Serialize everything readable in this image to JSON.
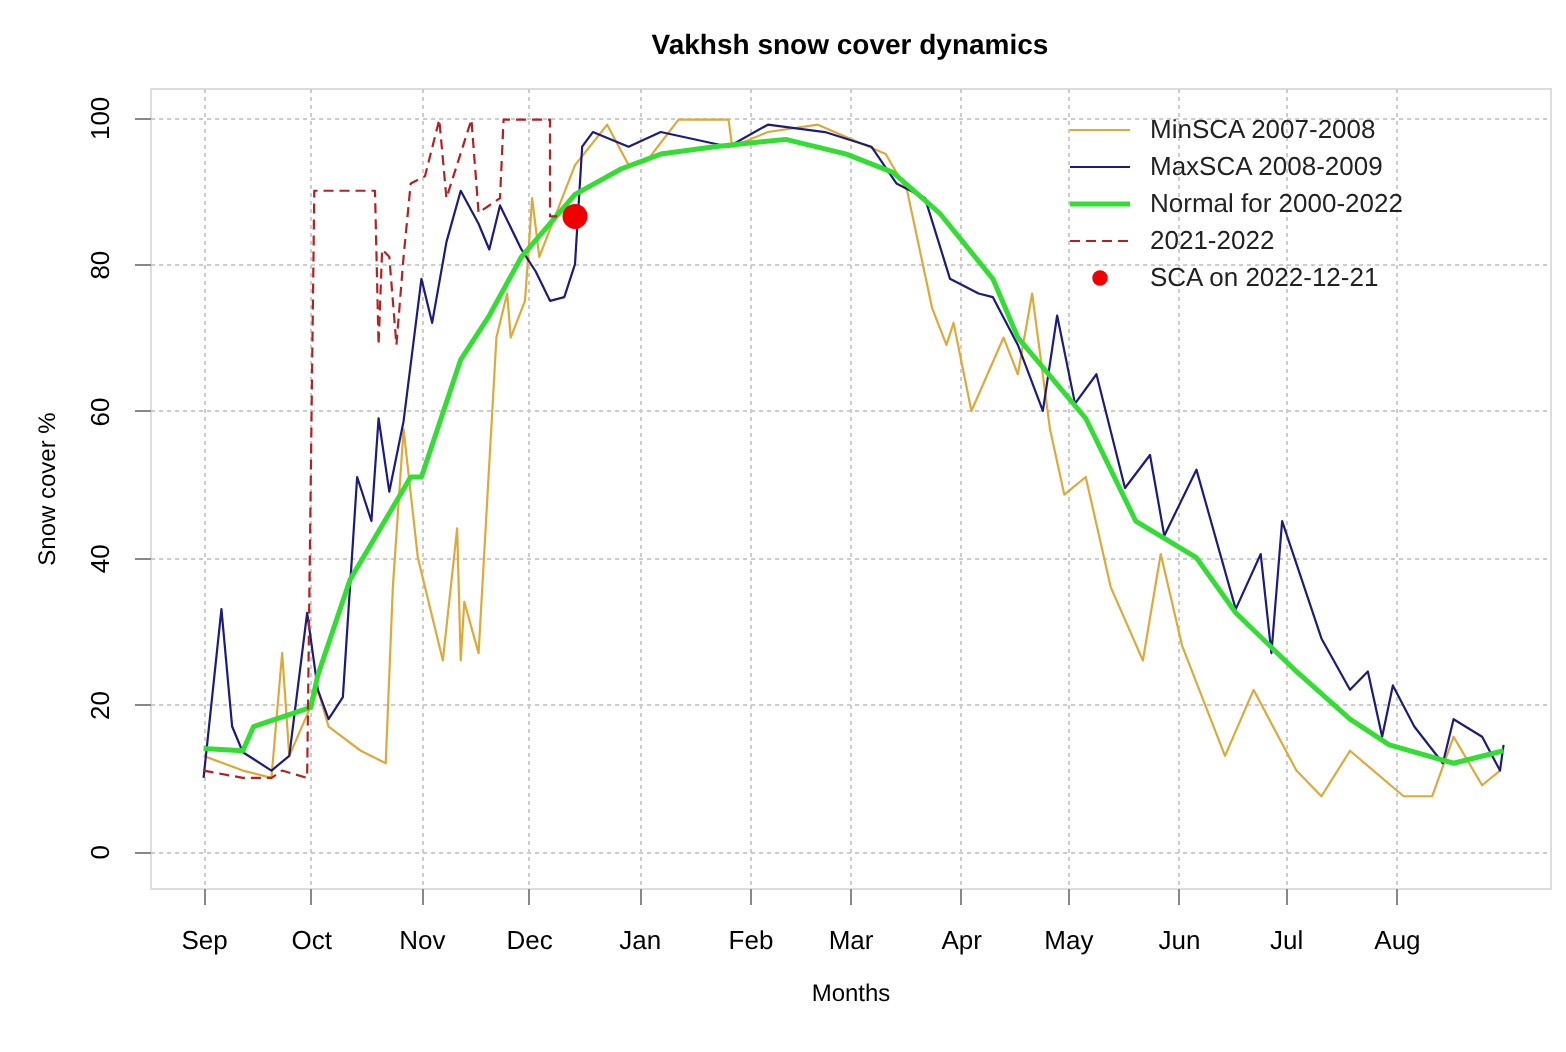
{
  "chart_data": {
    "type": "line",
    "title": "Vakhsh snow cover dynamics",
    "xlabel": "Months",
    "ylabel": "Snow cover %",
    "xlim": [
      "2022-08-17",
      "2023-09-13"
    ],
    "xticks": [
      {
        "value": "2022-09-01",
        "label": "Sep"
      },
      {
        "value": "2022-10-01",
        "label": "Oct"
      },
      {
        "value": "2022-11-01",
        "label": "Nov"
      },
      {
        "value": "2022-12-01",
        "label": "Dec"
      },
      {
        "value": "2023-01-01",
        "label": "Jan"
      },
      {
        "value": "2023-02-01",
        "label": "Feb"
      },
      {
        "value": "2023-03-01",
        "label": "Mar"
      },
      {
        "value": "2023-04-01",
        "label": "Apr"
      },
      {
        "value": "2023-05-01",
        "label": "May"
      },
      {
        "value": "2023-06-01",
        "label": "Jun"
      },
      {
        "value": "2023-07-01",
        "label": "Jul"
      },
      {
        "value": "2023-08-01",
        "label": "Aug"
      }
    ],
    "ylim": [
      -5,
      104
    ],
    "yticks": [
      0,
      20,
      40,
      60,
      80,
      100
    ],
    "grid": true,
    "legend": "top right",
    "series": [
      {
        "name": "MinSCA 2007-2008",
        "color": "#dcaa3c",
        "type": "line",
        "line_style": "solid",
        "marker": "none",
        "x": [
          "2022-09-01",
          "2022-09-12",
          "2022-09-20",
          "2022-09-23",
          "2022-09-25",
          "2022-10-03",
          "2022-10-06",
          "2022-10-15",
          "2022-10-22",
          "2022-10-24",
          "2022-10-27",
          "2022-10-31",
          "2022-11-07",
          "2022-11-11",
          "2022-11-12",
          "2022-11-13",
          "2022-11-17",
          "2022-11-22",
          "2022-11-25",
          "2022-11-26",
          "2022-11-30",
          "2022-12-02",
          "2022-12-04",
          "2022-12-14",
          "2022-12-23",
          "2022-12-29",
          "2023-01-03",
          "2023-01-12",
          "2023-01-22",
          "2023-01-26",
          "2023-01-27",
          "2023-02-06",
          "2023-02-20",
          "2023-03-11",
          "2023-03-17",
          "2023-03-24",
          "2023-03-28",
          "2023-03-30",
          "2023-04-04",
          "2023-04-13",
          "2023-04-17",
          "2023-04-21",
          "2023-04-26",
          "2023-04-30",
          "2023-05-06",
          "2023-05-13",
          "2023-05-22",
          "2023-05-27",
          "2023-06-02",
          "2023-06-14",
          "2023-06-22",
          "2023-07-04",
          "2023-07-11",
          "2023-07-19",
          "2023-08-03",
          "2023-08-11",
          "2023-08-17",
          "2023-08-25",
          "2023-08-30"
        ],
        "values": [
          13,
          11,
          10,
          27,
          13,
          22,
          17,
          13.7,
          12,
          36,
          57.5,
          40,
          26,
          44,
          26,
          34,
          27,
          70,
          76,
          70,
          75,
          89,
          81,
          93.5,
          99,
          93.5,
          94,
          99.7,
          99.7,
          99.7,
          96,
          98,
          99,
          95,
          90,
          74,
          69,
          72,
          60,
          70,
          65,
          76,
          57.5,
          48.6,
          51,
          36,
          26,
          40.5,
          28,
          13,
          22,
          11,
          7.5,
          13.7,
          7.5,
          7.5,
          15.6,
          9,
          11
        ]
      },
      {
        "name": "MaxSCA 2008-2009",
        "color": "#1c1c7c",
        "type": "line",
        "line_style": "solid",
        "marker": "none",
        "x": [
          "2022-09-01",
          "2022-09-06",
          "2022-09-09",
          "2022-09-12",
          "2022-09-20",
          "2022-09-25",
          "2022-09-30",
          "2022-10-03",
          "2022-10-06",
          "2022-10-10",
          "2022-10-14",
          "2022-10-18",
          "2022-10-20",
          "2022-10-23",
          "2022-10-27",
          "2022-11-01",
          "2022-11-04",
          "2022-11-08",
          "2022-11-12",
          "2022-11-17",
          "2022-11-20",
          "2022-11-23",
          "2022-11-29",
          "2022-12-03",
          "2022-12-07",
          "2022-12-11",
          "2022-12-14",
          "2022-12-16",
          "2022-12-19",
          "2022-12-29",
          "2023-01-07",
          "2023-01-26",
          "2023-02-06",
          "2023-02-22",
          "2023-03-07",
          "2023-03-14",
          "2023-03-22",
          "2023-03-29",
          "2023-04-06",
          "2023-04-10",
          "2023-04-17",
          "2023-04-24",
          "2023-04-28",
          "2023-05-03",
          "2023-05-09",
          "2023-05-17",
          "2023-05-24",
          "2023-05-28",
          "2023-06-06",
          "2023-06-17",
          "2023-06-24",
          "2023-06-27",
          "2023-06-30",
          "2023-07-11",
          "2023-07-19",
          "2023-07-24",
          "2023-07-28",
          "2023-07-31",
          "2023-08-06",
          "2023-08-14",
          "2023-08-17",
          "2023-08-25",
          "2023-08-30",
          "2023-08-31"
        ],
        "values": [
          10,
          33,
          17,
          13.5,
          11,
          13,
          32.5,
          22,
          18,
          21,
          51,
          45,
          59,
          49,
          58.6,
          78,
          72,
          83,
          90,
          85.5,
          82,
          88,
          82,
          79,
          75,
          75.5,
          80,
          96,
          98,
          96,
          98,
          96,
          99,
          98,
          96,
          91,
          89,
          78,
          76,
          75.5,
          69,
          60,
          73,
          61,
          65,
          49.5,
          54,
          43,
          52,
          33,
          40.5,
          27,
          45,
          29,
          22,
          24.5,
          15.6,
          22.6,
          17,
          12,
          18,
          15.6,
          11,
          14.5
        ]
      },
      {
        "name": "Normal for 2000-2022",
        "color": "#33dd33",
        "type": "line",
        "line_style": "solid",
        "marker": "none",
        "x": [
          "2022-09-01",
          "2022-09-12",
          "2022-09-15",
          "2022-10-01",
          "2022-10-03",
          "2022-10-12",
          "2022-10-29",
          "2022-11-01",
          "2022-11-12",
          "2022-11-20",
          "2022-11-29",
          "2022-12-14",
          "2022-12-27",
          "2023-01-07",
          "2023-01-22",
          "2023-02-11",
          "2023-02-28",
          "2023-03-13",
          "2023-03-26",
          "2023-04-10",
          "2023-04-17",
          "2023-05-06",
          "2023-05-20",
          "2023-06-06",
          "2023-06-17",
          "2023-07-04",
          "2023-07-19",
          "2023-07-30",
          "2023-08-17",
          "2023-08-31"
        ],
        "values": [
          14,
          13.7,
          17,
          19.6,
          24,
          37,
          51,
          51,
          67,
          73,
          81,
          89.5,
          93,
          95,
          96,
          97,
          95,
          92.5,
          87,
          78,
          70,
          59,
          45,
          40,
          32.5,
          24.5,
          18,
          14.5,
          12,
          13.7
        ]
      },
      {
        "name": "2021-2022",
        "color": "#b22222",
        "type": "line",
        "line_style": "dashed",
        "marker": "none",
        "x": [
          "2022-09-01",
          "2022-09-12",
          "2022-09-20",
          "2022-09-23",
          "2022-09-30",
          "2022-10-02",
          "2022-10-19",
          "2022-10-20",
          "2022-10-21",
          "2022-10-23",
          "2022-10-25",
          "2022-10-27",
          "2022-10-29",
          "2022-11-02",
          "2022-11-06",
          "2022-11-08",
          "2022-11-15",
          "2022-11-17",
          "2022-11-23",
          "2022-11-24",
          "2022-12-07",
          "2022-12-07",
          "2022-12-14"
        ],
        "values": [
          11,
          10,
          10,
          11,
          10,
          90,
          90,
          69,
          82,
          81,
          69,
          81,
          91,
          92,
          99.7,
          89,
          99.7,
          87,
          89,
          99.7,
          99.7,
          86.5,
          86.5
        ]
      },
      {
        "name": "SCA on 2022-12-21",
        "color": "#ee0000",
        "type": "scatter",
        "marker": "circle",
        "x": [
          "2022-12-14"
        ],
        "values": [
          86.5
        ]
      }
    ]
  }
}
